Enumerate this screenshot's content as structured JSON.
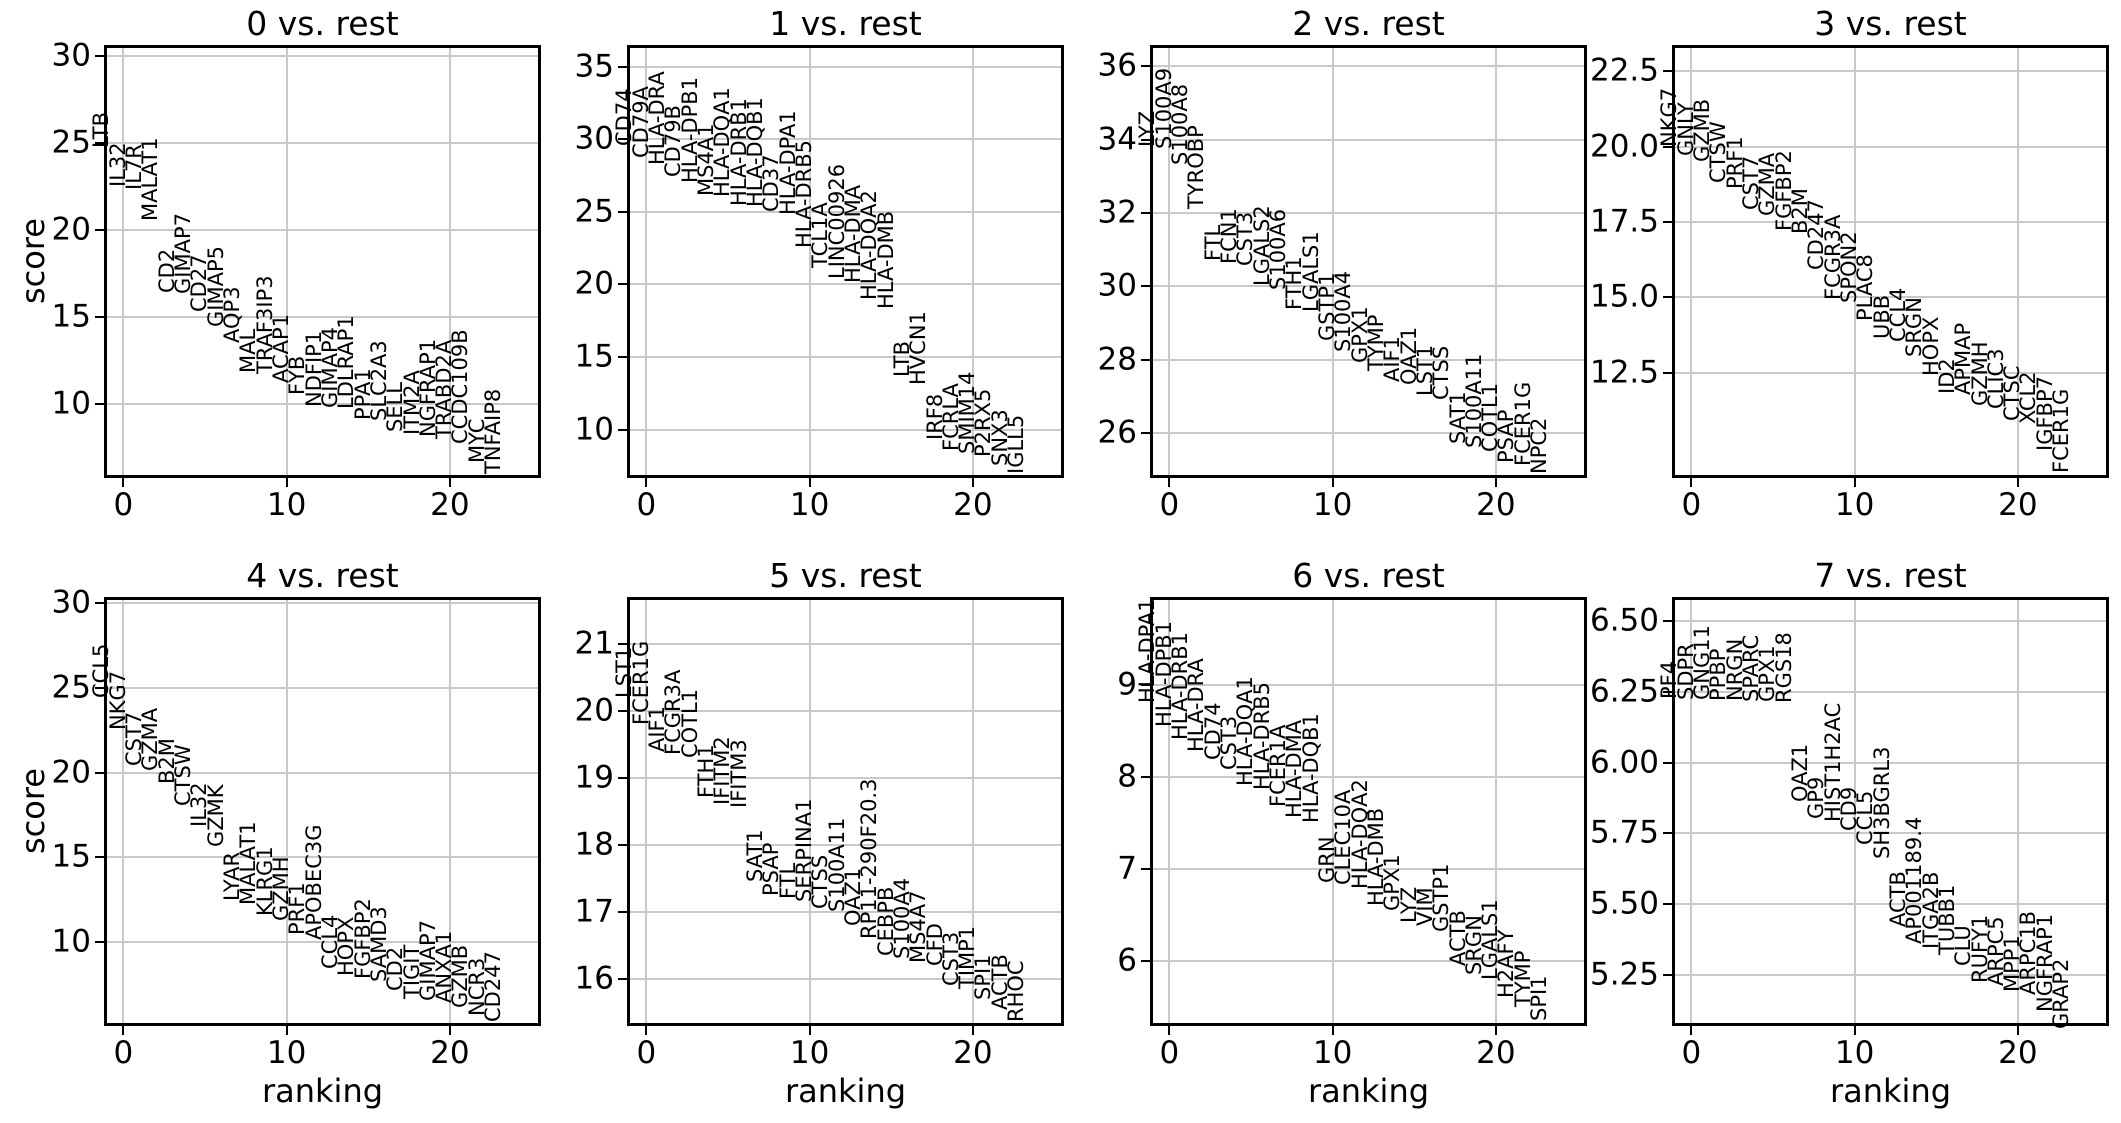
{
  "chart_data": {
    "type": "scatter",
    "description": "rank_genes_groups: gene score vs ranking, one panel per cluster vs rest",
    "xlabel": "ranking",
    "ylabel": "score",
    "x_ticks": [
      0,
      10,
      20
    ],
    "xlim": [
      -1.0,
      25.4
    ],
    "grid": true,
    "text_color": "#000000",
    "grid_color": "#c9c9c9",
    "panels": [
      {
        "title": "0 vs. rest",
        "ylim": [
          5.92,
          30.46
        ],
        "yticks": [
          "10",
          "15",
          "20",
          "25",
          "30"
        ],
        "genes": [
          "LTB",
          "IL32",
          "IL7R",
          "MALAT1",
          "CD2",
          "GIMAP7",
          "CD27",
          "GIMAP5",
          "AQP3",
          "MAL",
          "TRAF3IP3",
          "ACAP1",
          "FYB",
          "NDFIP1",
          "GIMAP4",
          "LDLRAP1",
          "PPA1",
          "SLC2A3",
          "SELL",
          "ITM2A",
          "NGFRAP1",
          "TRABD2A",
          "CCDC109B",
          "MYC",
          "TNFAIP8"
        ],
        "scores": [
          24.7,
          22.5,
          22.3,
          20.5,
          16.4,
          16.3,
          15.3,
          14.4,
          13.5,
          11.8,
          11.75,
          11.2,
          10.5,
          9.8,
          9.75,
          9.7,
          9.1,
          9.0,
          8.4,
          8.2,
          8.1,
          8.0,
          7.7,
          6.6,
          5.95
        ]
      },
      {
        "title": "1 vs. rest",
        "ylim": [
          6.87,
          36.28
        ],
        "yticks": [
          "10",
          "15",
          "20",
          "25",
          "30",
          "35"
        ],
        "genes": [
          "CD74",
          "CD79A",
          "HLA-DRA",
          "CD79B",
          "HLA-DPB1",
          "MS4A1",
          "HLA-DQA1",
          "HLA-DRB1",
          "HLA-DQB1",
          "CD37",
          "HLA-DPA1",
          "HLA-DRB5",
          "TCL1A",
          "LINC00926",
          "HLA-DMA",
          "HLA-DQA2",
          "HLA-DMB",
          "LTB",
          "HVCN1",
          "IRF8",
          "FCRLA",
          "SMIM14",
          "P2RX5",
          "SNX3",
          "IGLL5"
        ],
        "scores": [
          29.5,
          28.7,
          28.2,
          27.4,
          27.0,
          26.1,
          26.0,
          25.4,
          25.3,
          25.0,
          24.8,
          22.5,
          21.1,
          20.4,
          20.1,
          18.9,
          18.3,
          13.6,
          13.1,
          9.3,
          8.5,
          8.3,
          8.1,
          7.5,
          6.95
        ]
      },
      {
        "title": "2 vs. rest",
        "ylim": [
          24.86,
          36.5
        ],
        "yticks": [
          "26",
          "28",
          "30",
          "32",
          "34",
          "36"
        ],
        "genes": [
          "LYZ",
          "S100A9",
          "S100A8",
          "TYROBP",
          "FTL",
          "FCN1",
          "CST3",
          "LGALS2",
          "S100A6",
          "FTH1",
          "LGALS1",
          "GSTP1",
          "S100A4",
          "GPX1",
          "TYMP",
          "AIF1",
          "OAZ1",
          "LST1",
          "CTSS",
          "SAT1",
          "S100A11",
          "COTL1",
          "PSAP",
          "FCER1G",
          "NPC2"
        ],
        "scores": [
          33.8,
          33.75,
          33.3,
          32.1,
          30.7,
          30.6,
          30.55,
          30.0,
          29.9,
          29.35,
          29.3,
          28.5,
          28.2,
          27.9,
          27.7,
          27.4,
          27.3,
          27.0,
          26.9,
          25.7,
          25.6,
          25.5,
          25.2,
          25.1,
          24.9
        ]
      },
      {
        "title": "3 vs. rest",
        "ylim": [
          9.1,
          23.27
        ],
        "yticks": [
          "12.5",
          "15.0",
          "17.5",
          "20.0",
          "22.5"
        ],
        "genes": [
          "NKG7",
          "GNLY",
          "GZMB",
          "CTSW",
          "PRF1",
          "CST7",
          "GZMA",
          "FGFBP2",
          "B2M",
          "CD247",
          "FCGR3A",
          "SPON2",
          "PLAC8",
          "UBB",
          "CCL4",
          "SRGN",
          "HOPX",
          "ID2",
          "APMAP",
          "GZMH",
          "CLIC3",
          "CTSC",
          "XCL2",
          "IGFBP7",
          "FCER1G"
        ],
        "scores": [
          20.0,
          19.7,
          19.5,
          18.8,
          18.6,
          17.9,
          17.7,
          17.2,
          17.1,
          15.9,
          14.9,
          14.8,
          14.2,
          13.6,
          13.5,
          13.0,
          12.4,
          11.8,
          11.75,
          11.4,
          11.3,
          10.9,
          10.8,
          9.9,
          9.15
        ]
      },
      {
        "title": "4 vs. rest",
        "ylim": [
          5.2,
          30.2
        ],
        "yticks": [
          "10",
          "15",
          "20",
          "25",
          "30"
        ],
        "genes": [
          "CCL5",
          "NKG7",
          "CST7",
          "GZMA",
          "B2M",
          "CTSW",
          "IL32",
          "GZMK",
          "LYAR",
          "MALAT1",
          "KLRG1",
          "GZMH",
          "PRF1",
          "APOBEC3G",
          "CCL4",
          "HOPX",
          "FGFBP2",
          "SAMD3",
          "CD2",
          "TIGIT",
          "GIMAP7",
          "ANXA1",
          "GZMB",
          "NCR3",
          "CD247"
        ],
        "scores": [
          24.4,
          22.5,
          20.4,
          20.1,
          19.3,
          18.0,
          16.8,
          15.6,
          12.4,
          12.2,
          11.5,
          11.2,
          10.4,
          10.1,
          8.4,
          8.0,
          7.8,
          7.6,
          7.1,
          6.6,
          6.5,
          6.4,
          6.1,
          5.6,
          5.25
        ]
      },
      {
        "title": "5 vs. rest",
        "ylim": [
          15.35,
          21.66
        ],
        "yticks": [
          "16",
          "17",
          "18",
          "19",
          "20",
          "21"
        ],
        "genes": [
          "LST1",
          "FCER1G",
          "AIF1",
          "FCGR3A",
          "COTL1",
          "FTH1",
          "IFITM2",
          "IFITM3",
          "SAT1",
          "PSAP",
          "FTL",
          "SERPINA1",
          "CTSS",
          "S100A11",
          "OAZ1",
          "RP11-290F20.3",
          "CEBPB",
          "S100A4",
          "MS4A7",
          "CFD",
          "CST3",
          "TIMP1",
          "SPI1",
          "ACTB",
          "RHOC"
        ],
        "scores": [
          20.2,
          19.8,
          19.4,
          19.35,
          19.3,
          18.7,
          18.6,
          18.55,
          17.45,
          17.25,
          17.2,
          17.15,
          17.05,
          17.0,
          16.8,
          16.6,
          16.35,
          16.3,
          16.25,
          16.2,
          15.9,
          15.85,
          15.7,
          15.55,
          15.37
        ]
      },
      {
        "title": "6 vs. rest",
        "ylim": [
          5.33,
          9.92
        ],
        "yticks": [
          "6",
          "7",
          "8",
          "9"
        ],
        "genes": [
          "HLA-DPA1",
          "HLA-DPB1",
          "HLA-DRB1",
          "HLA-DRA",
          "CD74",
          "CST3",
          "HLA-DQA1",
          "HLA-DRB5",
          "FCER1A",
          "HLA-DMA",
          "HLA-DQB1",
          "GRN",
          "CLEC10A",
          "HLA-DQA2",
          "HLA-DMB",
          "GPX1",
          "LYZ",
          "VIM",
          "GSTP1",
          "ACTB",
          "SRGN",
          "LGALS1",
          "H2AFY",
          "TYMP",
          "SPI1"
        ],
        "scores": [
          8.8,
          8.54,
          8.4,
          8.27,
          8.18,
          8.08,
          7.9,
          7.86,
          7.67,
          7.55,
          7.5,
          6.85,
          6.83,
          6.78,
          6.6,
          6.55,
          6.42,
          6.38,
          6.32,
          5.95,
          5.85,
          5.8,
          5.6,
          5.5,
          5.35
        ]
      },
      {
        "title": "7 vs. rest",
        "ylim": [
          5.08,
          6.575
        ],
        "yticks": [
          "5.25",
          "5.50",
          "5.75",
          "6.00",
          "6.25",
          "6.50"
        ],
        "genes": [
          "PF4",
          "SDPR",
          "GNG11",
          "PPBP",
          "NRGN",
          "SPARC",
          "GPX1",
          "RGS18",
          "OAZ1",
          "GP9",
          "HIST1H2AC",
          "CD9",
          "CCL5",
          "SH3BGRL3",
          "ACTB",
          "AP001189.4",
          "ITGA2B",
          "TUBB1",
          "CLU",
          "RUFY1",
          "ARPC5",
          "MPP1",
          "ARPC1B",
          "NGFRAP1",
          "GRAP2"
        ],
        "scores": [
          6.225,
          6.223,
          6.221,
          6.219,
          6.217,
          6.215,
          6.213,
          6.21,
          5.86,
          5.8,
          5.79,
          5.76,
          5.71,
          5.66,
          5.42,
          5.36,
          5.34,
          5.32,
          5.28,
          5.22,
          5.21,
          5.19,
          5.18,
          5.12,
          5.06
        ]
      }
    ]
  }
}
